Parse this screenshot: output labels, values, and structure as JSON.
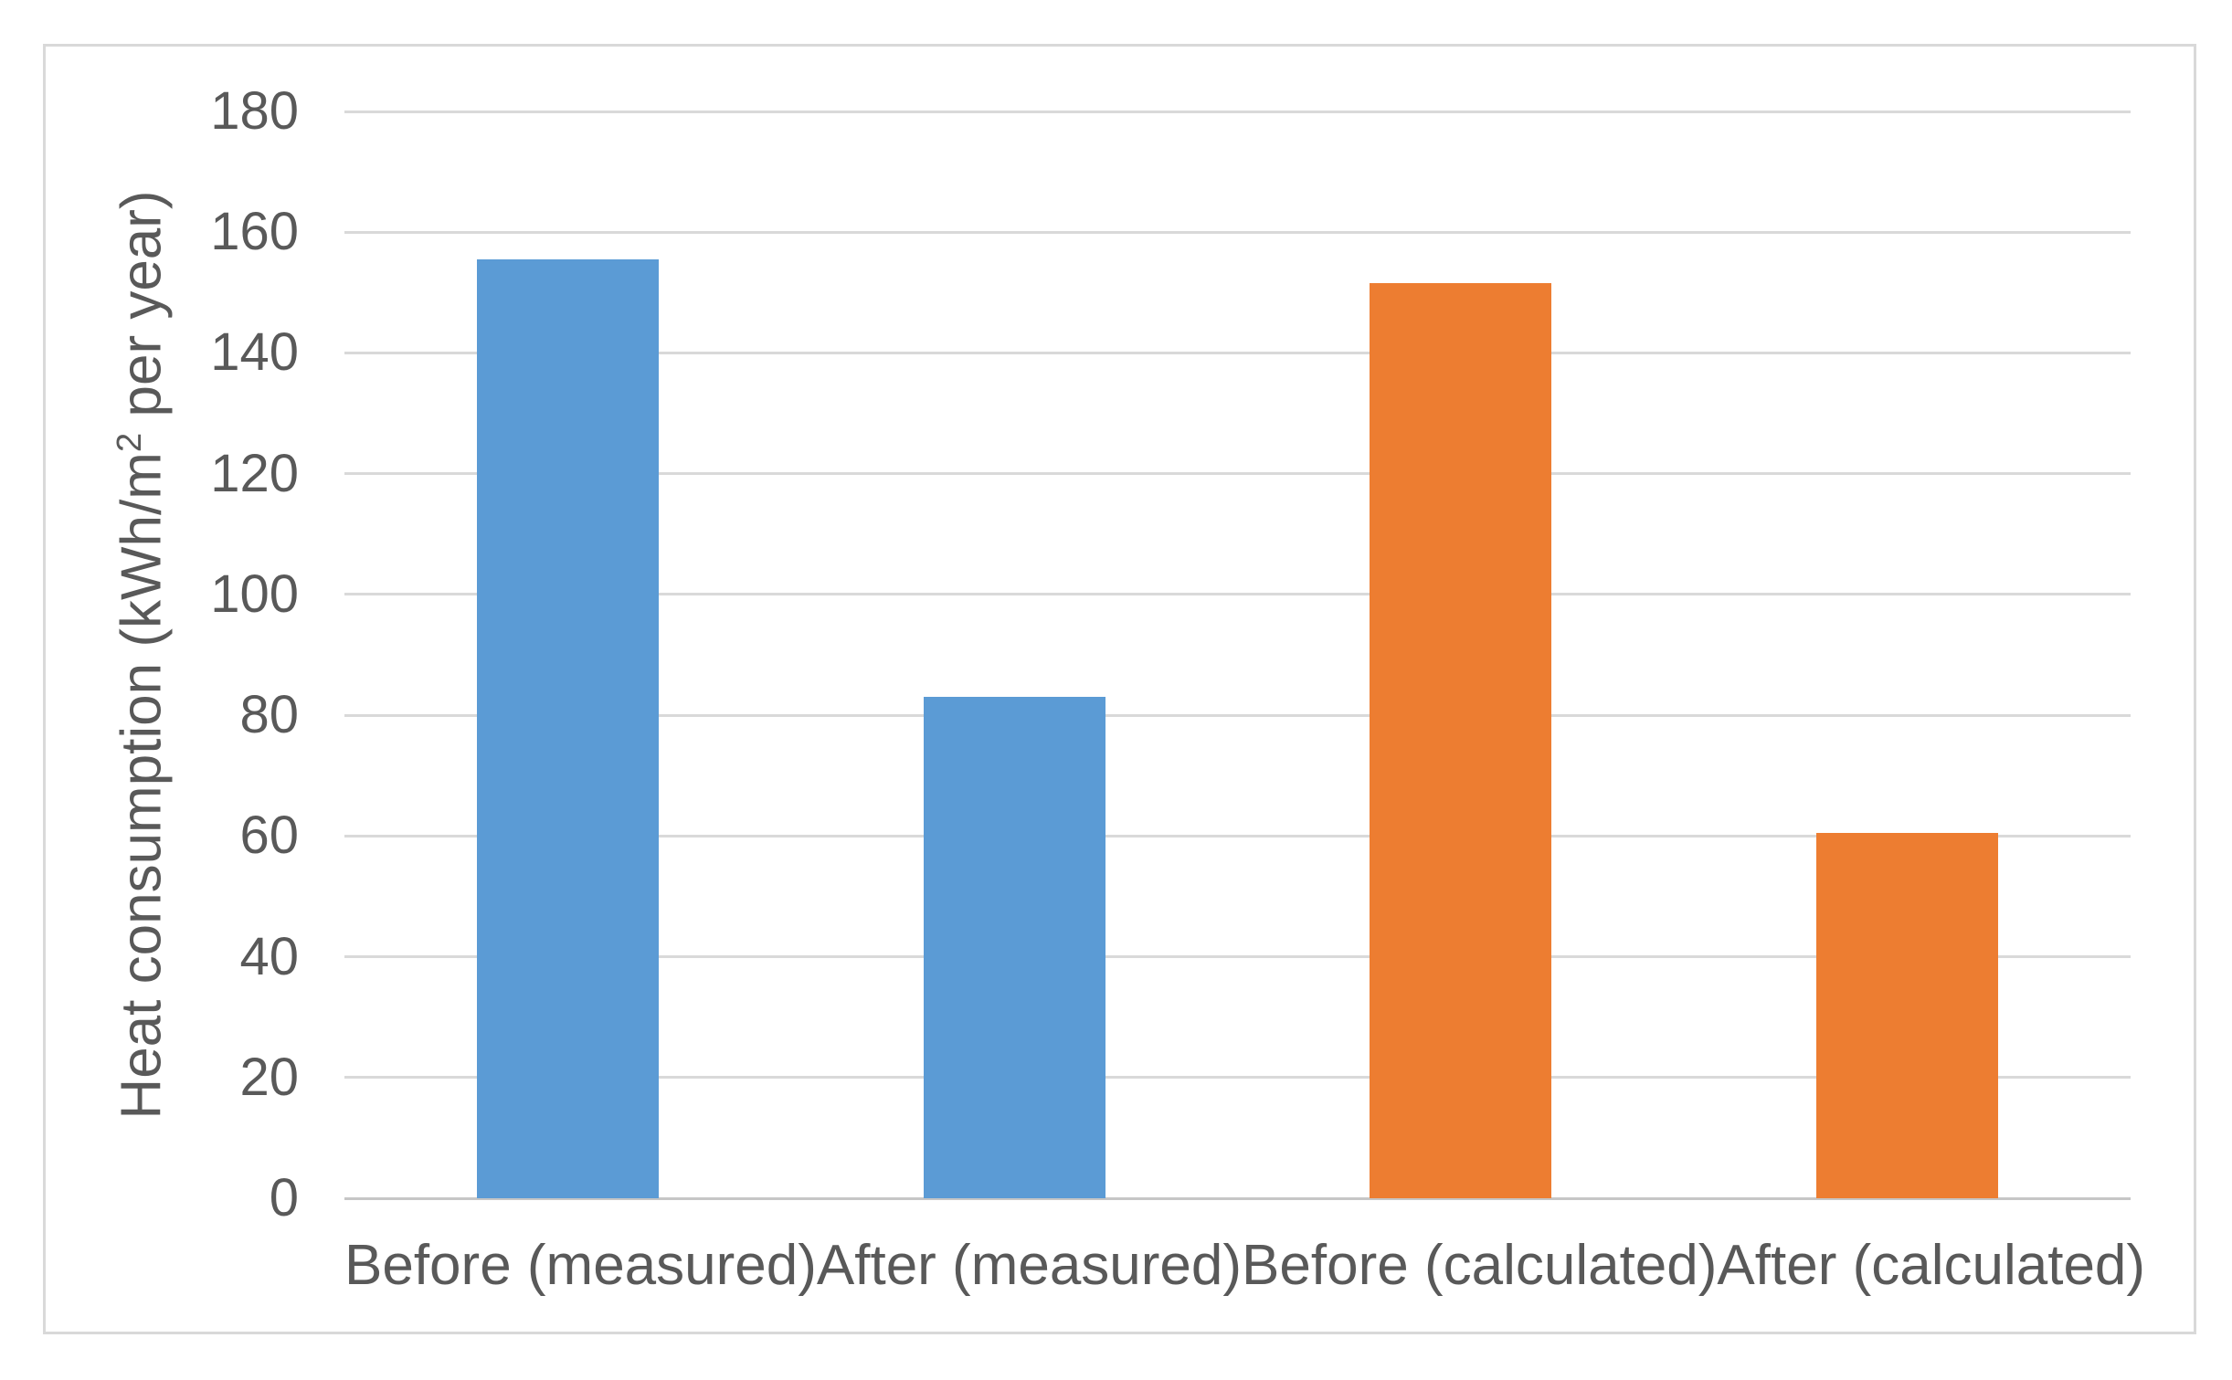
{
  "chart_data": {
    "type": "bar",
    "categories": [
      "Before (measured)",
      "After (measured)",
      "Before (calculated)",
      "After (calculated)"
    ],
    "values": [
      155.5,
      83,
      151.5,
      60.5
    ],
    "bar_colors": [
      "#5B9BD5",
      "#5B9BD5",
      "#ED7D31",
      "#ED7D31"
    ],
    "title": "",
    "xlabel": "",
    "ylabel": "Heat consumption (kWh/m² per year)",
    "ylim": [
      0,
      180
    ],
    "ytick_step": 20,
    "yticks": [
      0,
      20,
      40,
      60,
      80,
      100,
      120,
      140,
      160,
      180
    ],
    "grid": true,
    "legend": "none"
  },
  "y_axis_label": {
    "prefix": "Heat consumption (kWh/m",
    "sup": "2",
    "suffix": " per year)"
  },
  "styles": {
    "grid_color": "#D9D9D9",
    "axis_line_color": "#C6C6C6",
    "text_color": "#595959",
    "frame_border_color": "#D9D9D9",
    "background": "#FFFFFF",
    "series_blue": "#5B9BD5",
    "series_orange": "#ED7D31"
  }
}
